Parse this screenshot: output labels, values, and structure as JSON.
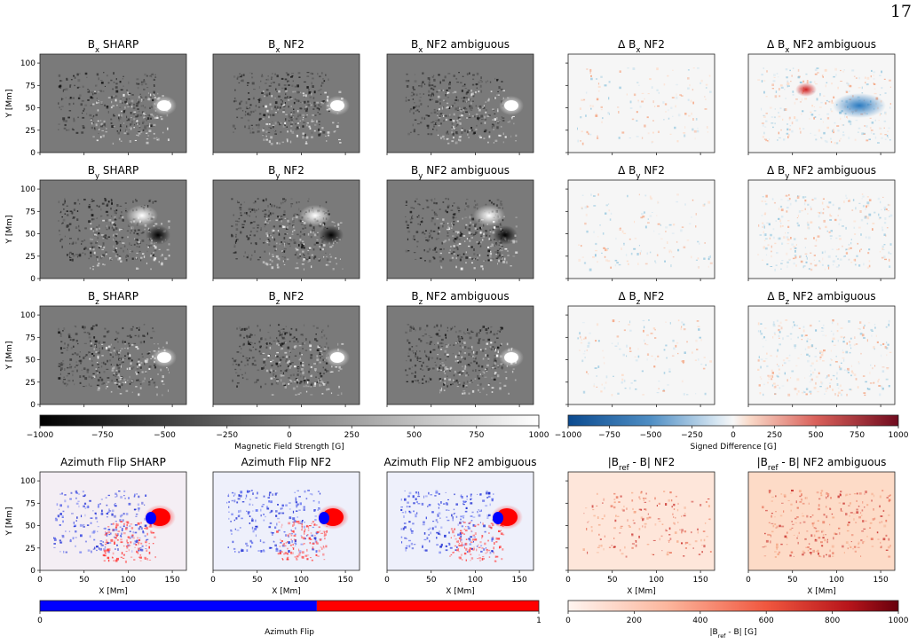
{
  "page": {
    "number": "17"
  },
  "colors": {
    "frame": "#222222",
    "gray_black": "#000000",
    "gray_white": "#ffffff",
    "diff_neg": "#0a4a8f",
    "diff_mid": "#f7f7f7",
    "diff_pos": "#700b1e",
    "flip_blue": "#0000ff",
    "flip_red": "#ff0000",
    "flip_mid": "#ffffff",
    "abs_low": "#fff5f0",
    "abs_high": "#67000d"
  },
  "rows": [
    {
      "label": "B<sub>x</sub>",
      "panels": [
        {
          "title": "B<sub>x</sub> SHARP",
          "kind": "gray"
        },
        {
          "title": "B<sub>x</sub> NF2",
          "kind": "gray"
        },
        {
          "title": "B<sub>x</sub> NF2 ambiguous",
          "kind": "gray"
        },
        {
          "title": "Δ B<sub>x</sub> NF2",
          "kind": "diff"
        },
        {
          "title": "Δ B<sub>x</sub> NF2 ambiguous",
          "kind": "diff"
        }
      ]
    },
    {
      "label": "B<sub>y</sub>",
      "panels": [
        {
          "title": "B<sub>y</sub> SHARP",
          "kind": "gray"
        },
        {
          "title": "B<sub>y</sub> NF2",
          "kind": "gray"
        },
        {
          "title": "B<sub>y</sub> NF2 ambiguous",
          "kind": "gray"
        },
        {
          "title": "Δ B<sub>y</sub> NF2",
          "kind": "diff"
        },
        {
          "title": "Δ B<sub>y</sub> NF2 ambiguous",
          "kind": "diff"
        }
      ]
    },
    {
      "label": "B<sub>z</sub>",
      "panels": [
        {
          "title": "B<sub>z</sub> SHARP",
          "kind": "gray"
        },
        {
          "title": "B<sub>z</sub> NF2",
          "kind": "gray"
        },
        {
          "title": "B<sub>z</sub> NF2 ambiguous",
          "kind": "gray"
        },
        {
          "title": "Δ B<sub>z</sub> NF2",
          "kind": "diff"
        },
        {
          "title": "Δ B<sub>z</sub> NF2 ambiguous",
          "kind": "diff"
        }
      ]
    },
    {
      "label": "flip",
      "panels": [
        {
          "title": "Azimuth Flip SHARP",
          "kind": "flip"
        },
        {
          "title": "Azimuth Flip NF2",
          "kind": "flip"
        },
        {
          "title": "Azimuth Flip NF2 ambiguous",
          "kind": "flip"
        },
        {
          "title": "|B<sub>ref</sub> - B| NF2",
          "kind": "abs"
        },
        {
          "title": "|B<sub>ref</sub> - B| NF2 ambiguous",
          "kind": "abs"
        }
      ]
    }
  ],
  "axes": {
    "ylabel": "Y [Mm]",
    "xlabel": "X [Mm]",
    "yticks": [
      "0",
      "25",
      "50",
      "75",
      "100"
    ],
    "yticks_values": [
      0,
      25,
      50,
      75,
      100
    ],
    "xticks": [
      "0",
      "50",
      "100",
      "150"
    ],
    "xticks_values": [
      0,
      50,
      100,
      150
    ],
    "xlim": [
      0,
      166
    ],
    "ylim": [
      0,
      110
    ]
  },
  "colorbars": {
    "field": {
      "label": "Magnetic Field Strength [G]",
      "ticks": [
        "−1000",
        "−750",
        "−500",
        "−250",
        "0",
        "250",
        "500",
        "750",
        "1000"
      ],
      "range": [
        -1000,
        1000
      ]
    },
    "diff": {
      "label": "Signed Difference [G]",
      "ticks": [
        "−1000",
        "−750",
        "−500",
        "−250",
        "0",
        "250",
        "500",
        "750",
        "1000"
      ],
      "range": [
        -1000,
        1000
      ]
    },
    "flip": {
      "label": "Azimuth Flip",
      "ticks": [
        "0",
        "1"
      ],
      "range": [
        0,
        1
      ]
    },
    "abs": {
      "label": "|B<sub>ref</sub> - B| [G]",
      "ticks": [
        "0",
        "200",
        "400",
        "600",
        "800",
        "1000"
      ],
      "range": [
        0,
        1000
      ]
    }
  }
}
